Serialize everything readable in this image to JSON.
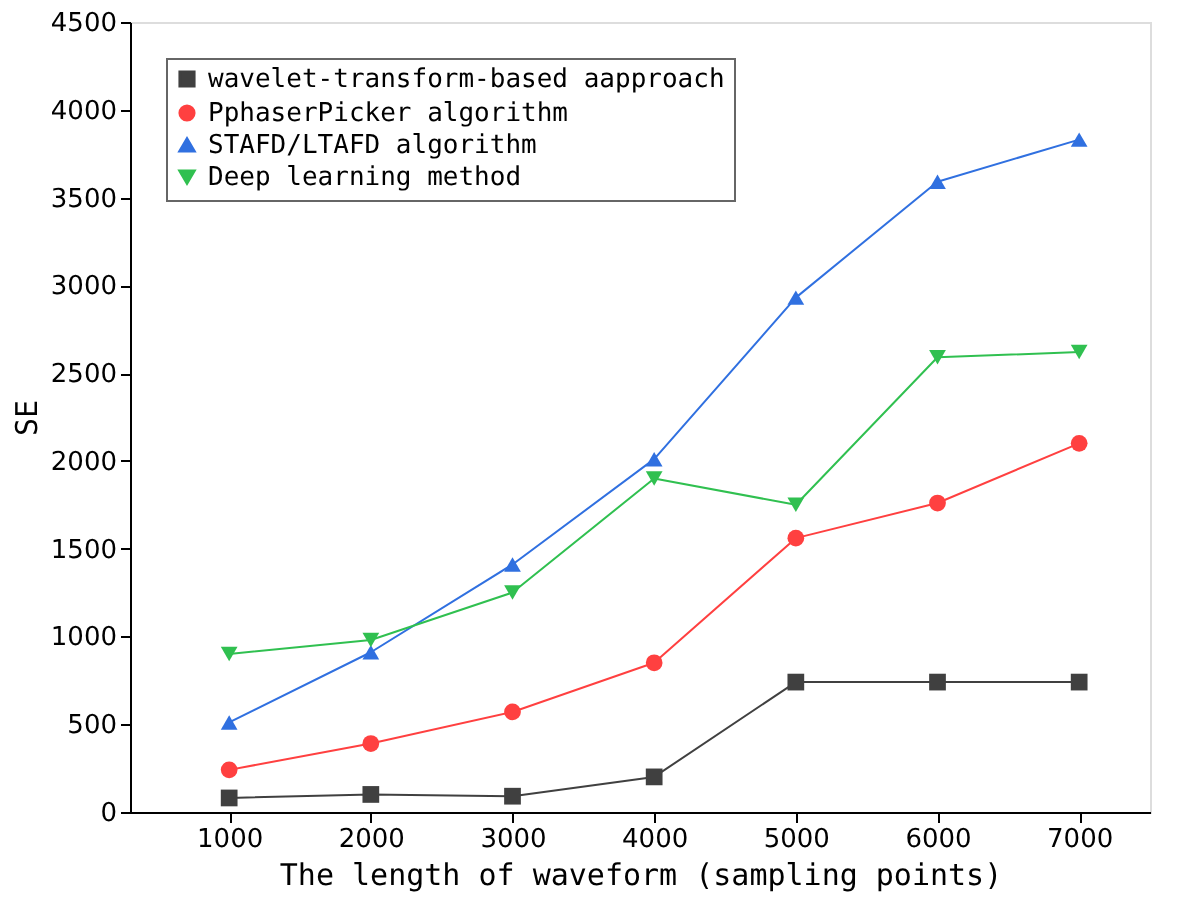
{
  "chart_data": {
    "type": "line",
    "xlabel": "The length of waveform (sampling points)",
    "ylabel": "SE",
    "x": [
      1000,
      2000,
      3000,
      4000,
      5000,
      6000,
      7000
    ],
    "series": [
      {
        "name": "wavelet-transform-based aapproach",
        "color": "#404040",
        "marker": "square",
        "values": [
          80,
          100,
          90,
          200,
          740,
          740,
          740
        ]
      },
      {
        "name": "PphaserPicker algorithm",
        "color": "#ff4040",
        "marker": "circle",
        "values": [
          240,
          390,
          570,
          850,
          1560,
          1760,
          2100
        ]
      },
      {
        "name": "STAFD/LTAFD algorithm",
        "color": "#3070e0",
        "marker": "triangle",
        "values": [
          510,
          910,
          1410,
          2010,
          2930,
          3590,
          3830
        ]
      },
      {
        "name": "Deep learning method",
        "color": "#30c050",
        "marker": "triangle-down",
        "values": [
          900,
          980,
          1250,
          1900,
          1750,
          2590,
          2620
        ]
      }
    ],
    "xlim": [
      300,
      7500
    ],
    "xticks": [
      1000,
      2000,
      3000,
      4000,
      5000,
      6000,
      7000
    ],
    "ylim": [
      0,
      4500
    ],
    "yticks": [
      0,
      500,
      1000,
      1500,
      2000,
      2500,
      3000,
      3500,
      4000,
      4500
    ],
    "grid": false,
    "legend": "top left",
    "line_style": "solid"
  }
}
